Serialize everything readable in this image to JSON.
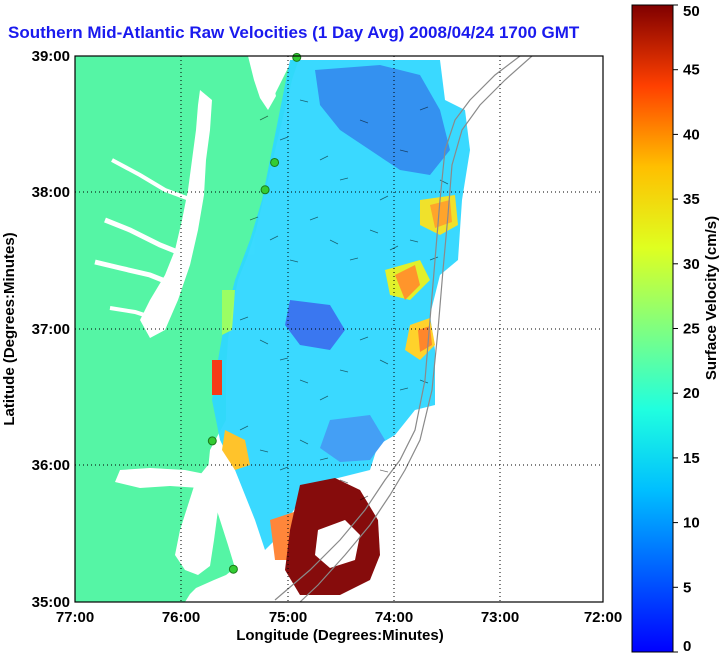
{
  "chart_data": {
    "type": "heatmap",
    "title": "Southern Mid-Atlantic Raw Velocities (1 Day Avg) 2008/04/24 1700 GMT",
    "xlabel": "Longitude (Degrees:Minutes)",
    "ylabel": "Latitude (Degrees:Minutes)",
    "colorbar_label": "Surface Velocity (cm/s)",
    "x_ticks": [
      "77:00",
      "76:00",
      "75:00",
      "74:00",
      "73:00",
      "72:00"
    ],
    "y_ticks": [
      "39:00",
      "38:00",
      "37:00",
      "36:00",
      "35:00"
    ],
    "colorbar_ticks": [
      "0",
      "5",
      "10",
      "15",
      "20",
      "25",
      "30",
      "35",
      "40",
      "45",
      "50"
    ],
    "xlim": [
      -77,
      -72
    ],
    "ylim": [
      35,
      39
    ],
    "clim": [
      0,
      50
    ],
    "grid": true,
    "colormap": "jet",
    "colors": {
      "land": "#55f5a5",
      "title": "#1a1aee",
      "bathymetry": "#8a8a8a",
      "stations": "#33cc33"
    },
    "stations": [
      {
        "lon": -74.9,
        "lat": 38.99
      },
      {
        "lon": -75.11,
        "lat": 38.22
      },
      {
        "lon": -75.2,
        "lat": 38.02
      },
      {
        "lon": -75.7,
        "lat": 36.18
      },
      {
        "lon": -75.5,
        "lat": 35.24
      }
    ]
  }
}
